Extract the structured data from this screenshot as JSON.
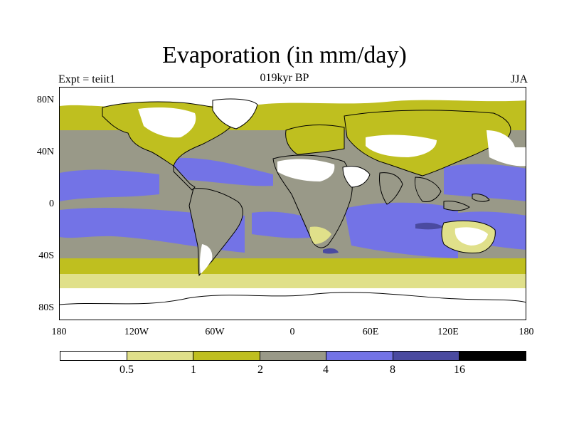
{
  "title": "Evaporation (in mm/day)",
  "subtitle": "019kyr BP",
  "experiment_label": "Expt = teiit1",
  "season_label": "JJA",
  "map": {
    "latitude_ticks": [
      "80N",
      "40N",
      "0",
      "40S",
      "80S"
    ],
    "longitude_ticks": [
      "180",
      "120W",
      "60W",
      "0",
      "60E",
      "120E",
      "180"
    ]
  },
  "colorbar": {
    "levels": [
      "0.5",
      "1",
      "2",
      "4",
      "8",
      "16"
    ],
    "colors": [
      "#ffffff",
      "#e0e08a",
      "#bfbf1f",
      "#999988",
      "#7373e6",
      "#4a4aa0",
      "#000000"
    ]
  }
}
